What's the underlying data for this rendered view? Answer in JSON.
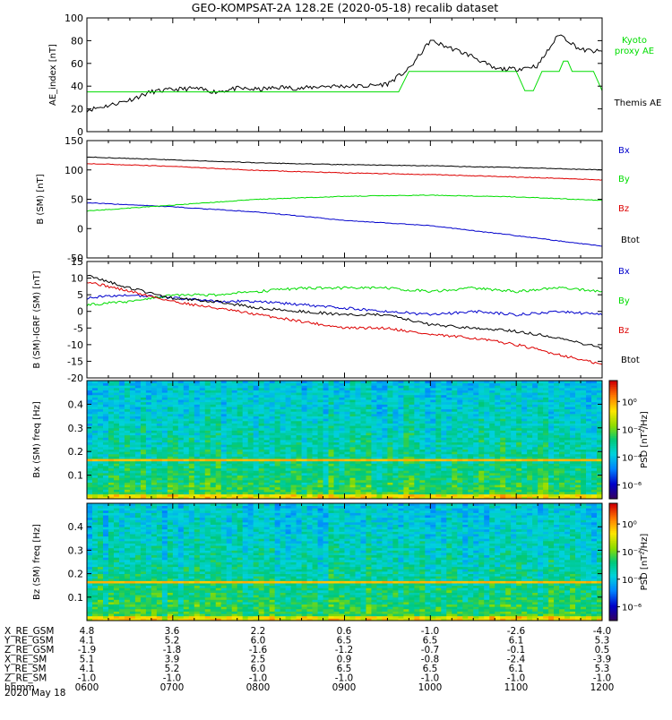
{
  "title": "GEO-KOMPSAT-2A 128.2E (2020-05-18) recalib dataset",
  "chart_data": [
    {
      "type": "line",
      "panel": "ae",
      "ylabel": "AE_index [nT]",
      "ylim": [
        0,
        100
      ],
      "yticks": [
        "0",
        "20",
        "40",
        "60",
        "80",
        "100"
      ],
      "x_start": "06:00",
      "x_end": "12:00",
      "series": [
        {
          "name": "Themis AE",
          "color": "#000000",
          "x": [
            6.0,
            6.25,
            6.5,
            6.75,
            7.0,
            7.25,
            7.5,
            7.75,
            8.0,
            8.25,
            8.5,
            8.75,
            9.0,
            9.25,
            9.5,
            9.75,
            10.0,
            10.25,
            10.5,
            10.75,
            11.0,
            11.25,
            11.5,
            11.75,
            12.0
          ],
          "values": [
            19,
            23,
            28,
            35,
            37,
            38,
            35,
            38,
            37,
            39,
            38,
            40,
            40,
            40,
            42,
            55,
            80,
            73,
            66,
            55,
            55,
            58,
            86,
            72,
            70
          ]
        },
        {
          "name": "Kyoto proxy AE",
          "color": "#00dd00",
          "x": [
            6.0,
            9.63,
            9.75,
            10.9,
            11.0,
            11.1,
            11.2,
            11.3,
            11.5,
            11.55,
            11.6,
            11.65,
            11.9,
            12.0
          ],
          "values": [
            35,
            35,
            53,
            53,
            53,
            36,
            36,
            53,
            53,
            62,
            62,
            53,
            53,
            36
          ]
        }
      ]
    },
    {
      "type": "line",
      "panel": "b",
      "ylabel": "B (SM) [nT]",
      "ylim": [
        -50,
        150
      ],
      "yticks": [
        "-50",
        "0",
        "50",
        "100",
        "150"
      ],
      "series": [
        {
          "name": "Bx",
          "color": "#0000cc",
          "x": [
            6,
            7,
            8,
            9,
            10,
            11,
            12
          ],
          "values": [
            44,
            37,
            28,
            14,
            5,
            -12,
            -30
          ]
        },
        {
          "name": "By",
          "color": "#00dd00",
          "x": [
            6,
            7,
            8,
            9,
            10,
            11,
            12
          ],
          "values": [
            30,
            40,
            50,
            55,
            57,
            54,
            48
          ]
        },
        {
          "name": "Bz",
          "color": "#dd0000",
          "x": [
            6,
            7,
            8,
            9,
            10,
            11,
            12
          ],
          "values": [
            111,
            106,
            99,
            95,
            92,
            88,
            83
          ]
        },
        {
          "name": "Btot",
          "color": "#000000",
          "x": [
            6,
            7,
            8,
            9,
            10,
            11,
            12
          ],
          "values": [
            122,
            117,
            112,
            109,
            107,
            104,
            100
          ]
        }
      ]
    },
    {
      "type": "line",
      "panel": "db",
      "ylabel": "B (SM)-IGRF (SM) [nT]",
      "ylim": [
        -20,
        15
      ],
      "yticks": [
        "-20",
        "-15",
        "-10",
        "-5",
        "0",
        "5",
        "10",
        "15"
      ],
      "series": [
        {
          "name": "Bx",
          "color": "#0000cc",
          "x": [
            6,
            6.5,
            7,
            7.5,
            8,
            8.5,
            9,
            9.5,
            10,
            10.5,
            11,
            11.5,
            12
          ],
          "values": [
            4,
            5,
            4,
            3,
            3,
            2,
            1,
            0,
            -1,
            0,
            -1,
            0,
            -1
          ]
        },
        {
          "name": "By",
          "color": "#00dd00",
          "x": [
            6,
            6.5,
            7,
            7.5,
            8,
            8.5,
            9,
            9.5,
            10,
            10.5,
            11,
            11.5,
            12
          ],
          "values": [
            2,
            3,
            5,
            5,
            6,
            7,
            7,
            7,
            6,
            7,
            6,
            7,
            6
          ]
        },
        {
          "name": "Bz",
          "color": "#dd0000",
          "x": [
            6,
            6.5,
            7,
            7.5,
            8,
            8.5,
            9,
            9.5,
            10,
            10.5,
            11,
            11.5,
            12
          ],
          "values": [
            9,
            6,
            3,
            1,
            -1,
            -3,
            -5,
            -5,
            -7,
            -8,
            -10,
            -13,
            -16
          ]
        },
        {
          "name": "Btot",
          "color": "#000000",
          "x": [
            6,
            6.5,
            7,
            7.5,
            8,
            8.5,
            9,
            9.5,
            10,
            10.5,
            11,
            11.5,
            12
          ],
          "values": [
            11,
            7,
            4,
            3,
            1,
            0,
            -1,
            -1,
            -4,
            -5,
            -6,
            -8,
            -11
          ]
        }
      ]
    },
    {
      "type": "heatmap",
      "panel": "spec_bx",
      "ylabel": "Bx (SM) freq [Hz]",
      "ylim": [
        0,
        0.5
      ],
      "yticks": [
        "0.1",
        "0.2",
        "0.3",
        "0.4"
      ],
      "colorbar_label": "PSD [nT²/Hz]",
      "colorbar_ticks": [
        "10⁰",
        "10⁻²",
        "10⁻⁴",
        "10⁻⁶"
      ],
      "colorbar_exponents": [
        0,
        -2,
        -4,
        -6
      ],
      "colorbar_range": [
        -7,
        1.5
      ],
      "band_hz": 0.166
    },
    {
      "type": "heatmap",
      "panel": "spec_bz",
      "ylabel": "Bz (SM) freq [Hz]",
      "ylim": [
        0,
        0.5
      ],
      "yticks": [
        "0.1",
        "0.2",
        "0.3",
        "0.4"
      ],
      "colorbar_label": "PSD [nT²/Hz]",
      "colorbar_ticks": [
        "10⁰",
        "10⁻²",
        "10⁻⁴",
        "10⁻⁶"
      ],
      "colorbar_exponents": [
        0,
        -2,
        -4,
        -6
      ],
      "colorbar_range": [
        -7,
        1.5
      ],
      "band_hz": 0.166
    }
  ],
  "legends": {
    "ae": [
      "Kyoto proxy AE",
      "Themis AE"
    ],
    "b": [
      "Bx",
      "By",
      "Bz",
      "Btot"
    ],
    "db": [
      "Bx",
      "By",
      "Bz",
      "Btot"
    ]
  },
  "ephemeris": {
    "rows": [
      {
        "label": "X_RE_GSM",
        "values": [
          "4.8",
          "3.6",
          "2.2",
          "0.6",
          "-1.0",
          "-2.6",
          "-4.0"
        ]
      },
      {
        "label": "Y_RE_GSM",
        "values": [
          "4.1",
          "5.2",
          "6.0",
          "6.5",
          "6.5",
          "6.1",
          "5.3"
        ]
      },
      {
        "label": "Z_RE_GSM",
        "values": [
          "-1.9",
          "-1.8",
          "-1.6",
          "-1.2",
          "-0.7",
          "-0.1",
          "0.5"
        ]
      },
      {
        "label": "X_RE_SM",
        "values": [
          "5.1",
          "3.9",
          "2.5",
          "0.9",
          "-0.8",
          "-2.4",
          "-3.9"
        ]
      },
      {
        "label": "Y_RE_SM",
        "values": [
          "4.1",
          "5.2",
          "6.0",
          "6.5",
          "6.5",
          "6.1",
          "5.3"
        ]
      },
      {
        "label": "Z_RE_SM",
        "values": [
          "-1.0",
          "-1.0",
          "-1.0",
          "-1.0",
          "-1.0",
          "-1.0",
          "-1.0"
        ]
      },
      {
        "label": "hhmm",
        "values": [
          "0600",
          "0700",
          "0800",
          "0900",
          "1000",
          "1100",
          "1200"
        ]
      }
    ],
    "date": "2020 May 18"
  }
}
